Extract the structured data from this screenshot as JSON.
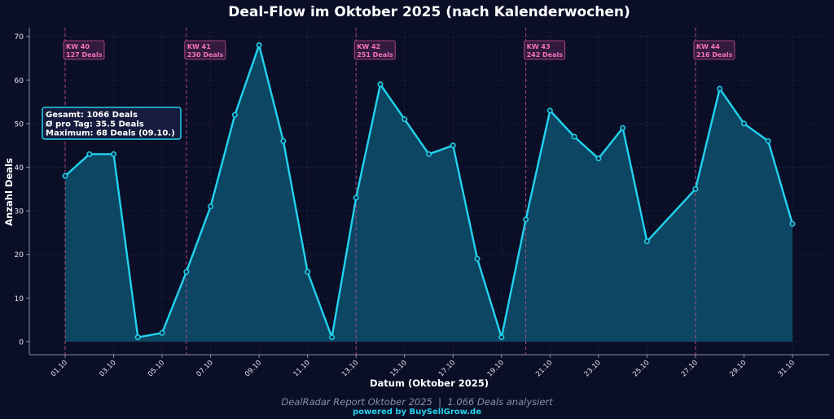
{
  "chart_data": {
    "type": "area",
    "title": "Deal-Flow im Oktober 2025 (nach Kalenderwochen)",
    "xlabel": "Datum (Oktober 2025)",
    "ylabel": "Anzahl Deals",
    "ylim": [
      -3,
      72
    ],
    "yticks": [
      0,
      10,
      20,
      30,
      40,
      50,
      60,
      70
    ],
    "grid": true,
    "x": [
      "01.10",
      "02.10",
      "03.10",
      "04.10",
      "05.10",
      "06.10",
      "07.10",
      "08.10",
      "09.10",
      "10.10",
      "11.10",
      "12.10",
      "13.10",
      "14.10",
      "15.10",
      "16.10",
      "17.10",
      "18.10",
      "19.10",
      "20.10",
      "21.10",
      "22.10",
      "23.10",
      "24.10",
      "25.10",
      "26.10",
      "27.10",
      "28.10",
      "29.10",
      "30.10",
      "31.10"
    ],
    "x_tick_labels": [
      "01.10",
      "03.10",
      "05.10",
      "07.10",
      "09.10",
      "11.10",
      "13.10",
      "15.10",
      "17.10",
      "19.10",
      "21.10",
      "23.10",
      "25.10",
      "27.10",
      "29.10",
      "31.10"
    ],
    "values": [
      38,
      43,
      43,
      1,
      2,
      16,
      31,
      52,
      68,
      46,
      16,
      1,
      33,
      59,
      51,
      43,
      45,
      19,
      1,
      28,
      53,
      47,
      42,
      49,
      23,
      null,
      35,
      58,
      50,
      46,
      27
    ],
    "week_markers": [
      {
        "date": "01.10",
        "label": "KW 40",
        "deals": "127 Deals"
      },
      {
        "date": "06.10",
        "label": "KW 41",
        "deals": "230 Deals"
      },
      {
        "date": "13.10",
        "label": "KW 42",
        "deals": "251 Deals"
      },
      {
        "date": "20.10",
        "label": "KW 43",
        "deals": "242 Deals"
      },
      {
        "date": "27.10",
        "label": "KW 44",
        "deals": "216 Deals"
      }
    ],
    "stats_box": [
      "Gesamt: 1066 Deals",
      "Ø pro Tag: 35.5 Deals",
      "Maximum: 68 Deals (09.10.)"
    ],
    "colors": {
      "background": "#0b0e27",
      "line": "#22d3ee",
      "fill": "#0e5a78",
      "marker_fill": "#0e3a52",
      "week_line": "#d0508a",
      "week_text": "#f472b6"
    }
  },
  "footer": {
    "report": "DealRadar Report Oktober 2025  |  1.066 Deals analysiert",
    "powered": "powered by BuySellGrow.de"
  }
}
